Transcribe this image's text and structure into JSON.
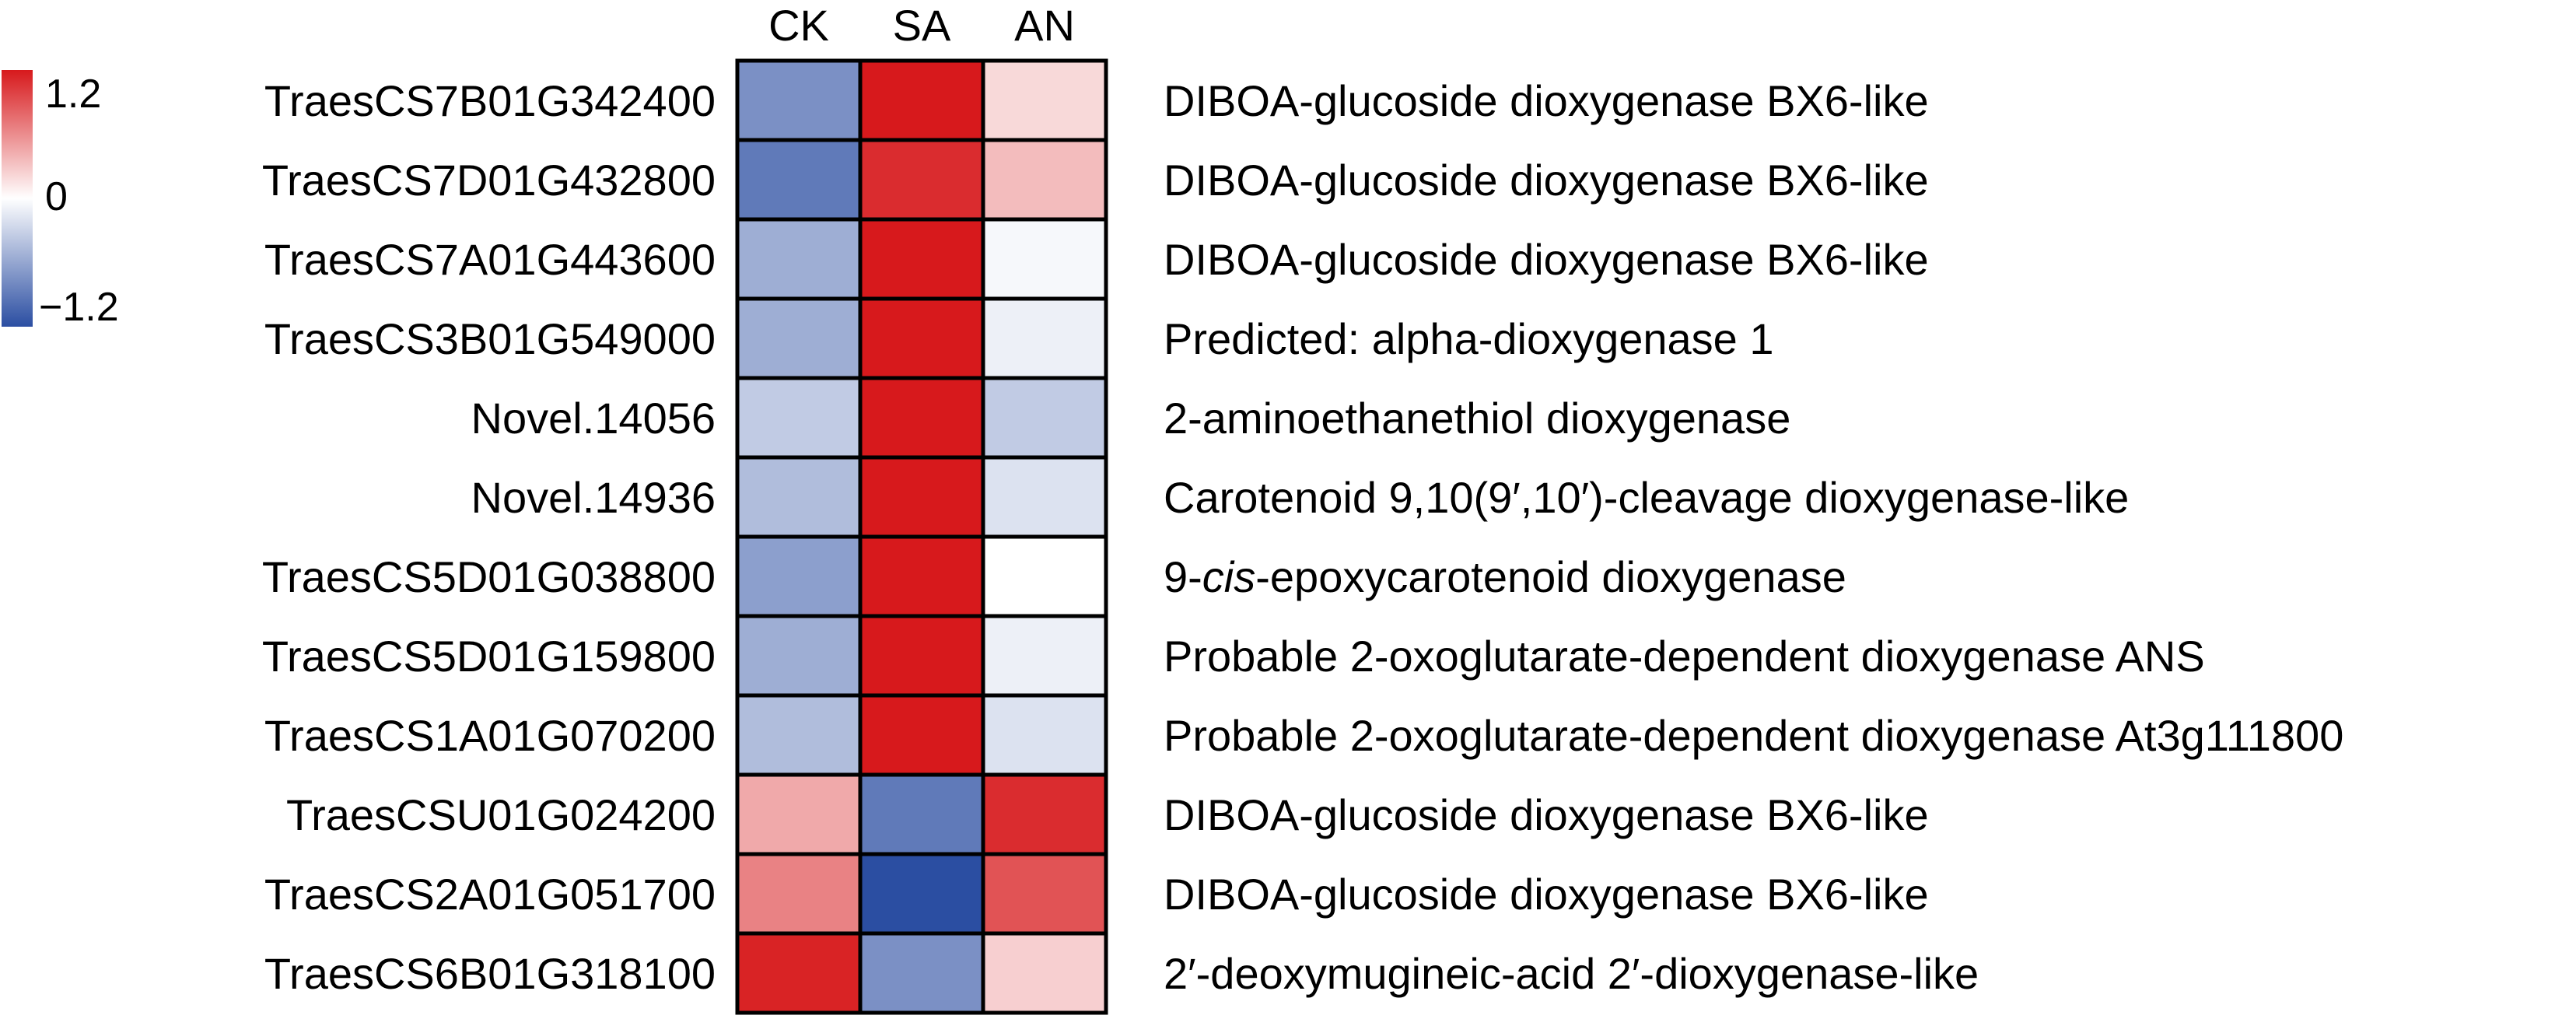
{
  "chart_data": {
    "type": "heatmap",
    "columns": [
      "CK",
      "SA",
      "AN"
    ],
    "rows": [
      {
        "gene": "TraesCS7B01G342400",
        "annotation": "DIBOA-glucoside dioxygenase BX6-like",
        "values": [
          -0.75,
          1.2,
          0.2
        ]
      },
      {
        "gene": "TraesCS7D01G432800",
        "annotation": "DIBOA-glucoside dioxygenase BX6-like",
        "values": [
          -0.9,
          1.1,
          0.35
        ]
      },
      {
        "gene": "TraesCS7A01G443600",
        "annotation": "DIBOA-glucoside dioxygenase BX6-like",
        "values": [
          -0.55,
          1.2,
          -0.05
        ]
      },
      {
        "gene": "TraesCS3B01G549000",
        "annotation": "Predicted: alpha-dioxygenase 1",
        "values": [
          -0.55,
          1.2,
          -0.1
        ]
      },
      {
        "gene": "Novel.14056",
        "annotation": "2-aminoethanethiol dioxygenase",
        "values": [
          -0.35,
          1.2,
          -0.35
        ]
      },
      {
        "gene": "Novel.14936",
        "annotation": "Carotenoid 9,10(9′,10′)-cleavage dioxygenase-like",
        "values": [
          -0.45,
          1.2,
          -0.2
        ]
      },
      {
        "gene": "TraesCS5D01G038800",
        "annotation_parts": [
          "9-",
          "cis",
          "-epoxycarotenoid dioxygenase"
        ],
        "values": [
          -0.65,
          1.2,
          0.0
        ]
      },
      {
        "gene": "TraesCS5D01G159800",
        "annotation": "Probable 2-oxoglutarate-dependent dioxygenase ANS",
        "values": [
          -0.55,
          1.2,
          -0.1
        ]
      },
      {
        "gene": "TraesCS1A01G070200",
        "annotation": "Probable 2-oxoglutarate-dependent dioxygenase At3g111800",
        "values": [
          -0.45,
          1.2,
          -0.2
        ]
      },
      {
        "gene": "TraesCSU01G024200",
        "annotation": "DIBOA-glucoside dioxygenase BX6-like",
        "values": [
          0.45,
          -0.9,
          1.1
        ]
      },
      {
        "gene": "TraesCS2A01G051700",
        "annotation": "DIBOA-glucoside dioxygenase BX6-like",
        "values": [
          0.65,
          -1.2,
          0.9
        ]
      },
      {
        "gene": "TraesCS6B01G318100",
        "annotation": "2′-deoxymugineic-acid 2′-dioxygenase-like",
        "values": [
          1.15,
          -0.75,
          0.25
        ]
      }
    ],
    "color_scale": {
      "min": -1.2,
      "mid": 0,
      "max": 1.2,
      "colors": [
        "#2b4ea2",
        "#ffffff",
        "#d7191c"
      ],
      "tick_labels": [
        "1.2",
        "0",
        "−1.2"
      ]
    }
  }
}
